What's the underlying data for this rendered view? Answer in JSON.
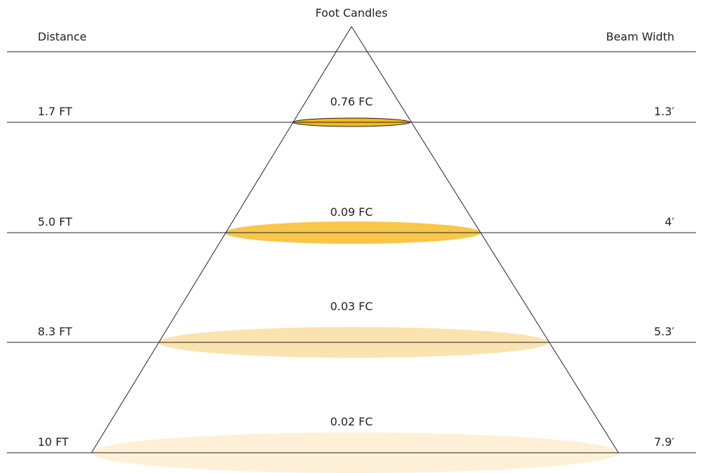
{
  "header": {
    "top_label": "Foot Candles",
    "left_label": "Distance",
    "right_label": "Beam Width"
  },
  "levels": [
    {
      "distance": "1.7 FT",
      "foot_candles": "0.76 FC",
      "beam_width": "1.3′",
      "fill": "#f8b81c"
    },
    {
      "distance": "5.0 FT",
      "foot_candles": "0.09 FC",
      "beam_width": "4′",
      "fill": "#f9c64a"
    },
    {
      "distance": "8.3 FT",
      "foot_candles": "0.03 FC",
      "beam_width": "5.3′",
      "fill": "#fbe3b0"
    },
    {
      "distance": "10 FT",
      "foot_candles": "0.02 FC",
      "beam_width": "7.9′",
      "fill": "#fdf0d6"
    }
  ],
  "colors": {
    "line": "#222222",
    "text": "#222222"
  }
}
